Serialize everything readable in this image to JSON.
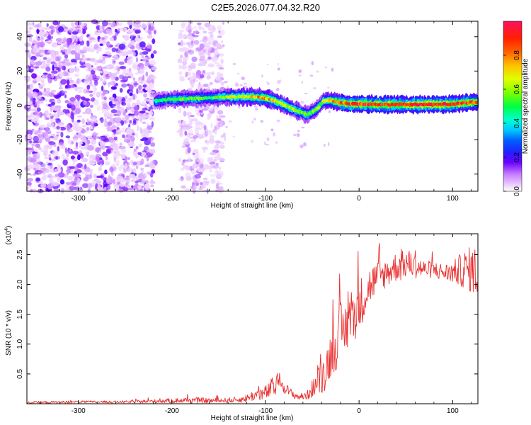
{
  "title": "C2E5.2026.077.04.32.R20",
  "colors": {
    "snr_line": "#e8302f",
    "axis": "#000000",
    "background": "#ffffff"
  },
  "chart_data": [
    {
      "type": "heatmap",
      "name": "spectrogram",
      "xlabel": "Height of straight line (km)",
      "ylabel": "Frequency (Hz)",
      "xlim": [
        -355,
        127
      ],
      "ylim": [
        -50,
        49
      ],
      "x_ticks": [
        -300,
        -200,
        -100,
        0,
        100
      ],
      "x_tick_labels": [
        "-300",
        "-200",
        "-100",
        "0",
        "100"
      ],
      "y_ticks": [
        -40,
        -20,
        0,
        20,
        40
      ],
      "y_tick_labels": [
        "-40",
        "-20",
        "0",
        "20",
        "40"
      ],
      "colorbar": {
        "label": "Normalized spectral amplitude",
        "range": [
          0.0,
          1.0
        ],
        "ticks": [
          0.0,
          0.2,
          0.4,
          0.6,
          0.8
        ],
        "tick_labels": [
          "0.0",
          "0.2",
          "0.4",
          "0.6",
          "0.8"
        ]
      },
      "signal_track": {
        "x": [
          -218,
          -205,
          -190,
          -175,
          -160,
          -145,
          -130,
          -115,
          -105,
          -95,
          -85,
          -75,
          -65,
          -55,
          -45,
          -38,
          -30,
          -20,
          -10,
          0,
          20,
          40,
          60,
          80,
          100,
          115,
          127
        ],
        "freq": [
          2.5,
          3.5,
          3.8,
          4.0,
          4.5,
          4.8,
          5.0,
          5.0,
          4.6,
          3.5,
          1.5,
          -1.0,
          -3.5,
          -5.5,
          -2.0,
          2.5,
          3.0,
          1.5,
          0.8,
          1.0,
          0.5,
          0.5,
          0.5,
          0.6,
          0.8,
          1.5,
          2.0
        ],
        "amplitude": [
          0.45,
          0.5,
          0.55,
          0.55,
          0.5,
          0.6,
          0.65,
          0.7,
          0.75,
          0.72,
          0.68,
          0.65,
          0.6,
          0.55,
          0.55,
          0.6,
          0.75,
          0.85,
          0.9,
          0.9,
          0.92,
          0.93,
          0.95,
          0.92,
          0.9,
          0.88,
          0.85
        ]
      },
      "noise_regions": [
        {
          "x_range": [
            -355,
            -218
          ],
          "density": "high"
        },
        {
          "x_range": [
            -192,
            -145
          ],
          "density": "medium"
        }
      ]
    },
    {
      "type": "line",
      "name": "snr",
      "xlabel": "Height of straight line (km)",
      "ylabel": "SNR (10 * v/v)",
      "multiplier": "(x10",
      "multiplier_exp": "4",
      "multiplier_close": ")",
      "xlim": [
        -355,
        127
      ],
      "ylim": [
        0,
        2.85
      ],
      "x_ticks": [
        -300,
        -200,
        -100,
        0,
        100
      ],
      "x_tick_labels": [
        "-300",
        "-200",
        "-100",
        "0",
        "100"
      ],
      "y_ticks": [
        0.5,
        1.0,
        1.5,
        2.0,
        2.5
      ],
      "y_tick_labels": [
        "0.5",
        "1.0",
        "1.5",
        "2.0",
        "2.5"
      ],
      "series": [
        {
          "name": "SNR",
          "x": [
            -355,
            -300,
            -250,
            -200,
            -180,
            -150,
            -125,
            -110,
            -100,
            -90,
            -85,
            -80,
            -75,
            -70,
            -65,
            -60,
            -55,
            -50,
            -45,
            -40,
            -35,
            -30,
            -25,
            -20,
            -15,
            -10,
            -5,
            0,
            5,
            10,
            15,
            20,
            25,
            30,
            35,
            40,
            45,
            50,
            55,
            60,
            70,
            80,
            90,
            100,
            110,
            120,
            127
          ],
          "mean": [
            0.02,
            0.03,
            0.03,
            0.05,
            0.06,
            0.05,
            0.07,
            0.15,
            0.18,
            0.3,
            0.38,
            0.3,
            0.2,
            0.15,
            0.12,
            0.12,
            0.15,
            0.25,
            0.35,
            0.45,
            0.6,
            0.85,
            1.0,
            1.2,
            1.25,
            1.45,
            1.5,
            1.65,
            1.8,
            1.95,
            2.05,
            2.1,
            2.15,
            2.2,
            2.25,
            2.3,
            2.3,
            2.35,
            2.35,
            2.3,
            2.25,
            2.25,
            2.2,
            2.2,
            2.25,
            2.25,
            2.2
          ],
          "amp": [
            0.02,
            0.02,
            0.02,
            0.04,
            0.05,
            0.04,
            0.05,
            0.1,
            0.12,
            0.2,
            0.15,
            0.12,
            0.08,
            0.07,
            0.06,
            0.06,
            0.08,
            0.15,
            0.2,
            0.3,
            0.35,
            0.4,
            0.45,
            0.5,
            0.45,
            0.5,
            0.45,
            0.45,
            0.4,
            0.35,
            0.3,
            0.3,
            0.25,
            0.25,
            0.25,
            0.25,
            0.25,
            0.25,
            0.22,
            0.2,
            0.15,
            0.15,
            0.15,
            0.18,
            0.3,
            0.4,
            0.45
          ]
        }
      ]
    }
  ]
}
